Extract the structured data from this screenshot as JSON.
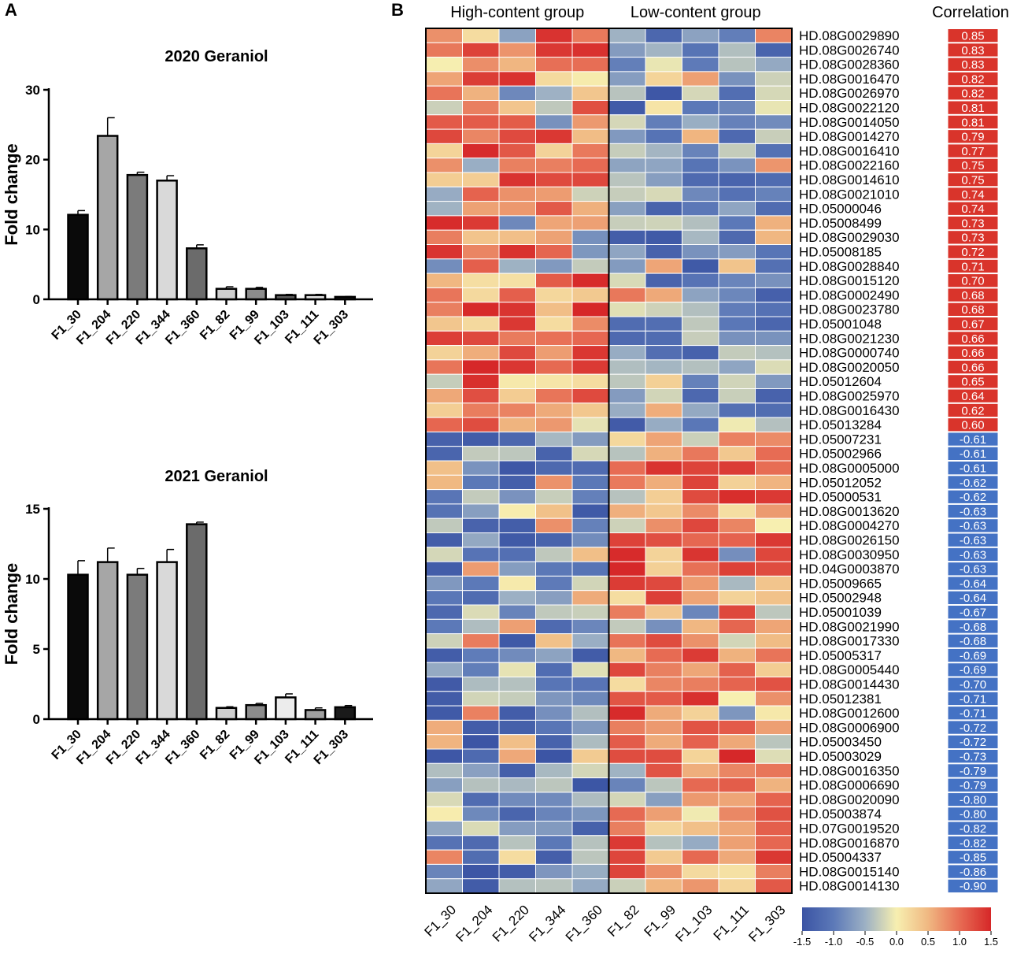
{
  "panels": {
    "a": "A",
    "b": "B"
  },
  "chart_data": [
    {
      "type": "bar",
      "title": "2020 Geraniol",
      "xlabel": "",
      "ylabel": "Fold change",
      "categories": [
        "F1_30",
        "F1_204",
        "F1_220",
        "F1_344",
        "F1_360",
        "F1_82",
        "F1_99",
        "F1_103",
        "F1_111",
        "F1_303"
      ],
      "values": [
        12.1,
        23.4,
        17.8,
        17.0,
        7.3,
        1.5,
        1.5,
        0.6,
        0.6,
        0.35
      ],
      "errors": [
        0.6,
        2.6,
        0.4,
        0.7,
        0.5,
        0.3,
        0.2,
        0.1,
        0.1,
        0.05
      ],
      "fills": [
        "#0a0a0a",
        "#a6a6a6",
        "#7b7b7b",
        "#d9d9d9",
        "#6b6b6b",
        "#cfcfcf",
        "#8c8c8c",
        "#5a5a5a",
        "#e0e0e0",
        "#1a1a1a"
      ],
      "ylim": [
        0,
        30
      ],
      "yticks": [
        0,
        10,
        20,
        30
      ]
    },
    {
      "type": "bar",
      "title": "2021 Geraniol",
      "xlabel": "",
      "ylabel": "Fold change",
      "categories": [
        "F1_30",
        "F1_204",
        "F1_220",
        "F1_344",
        "F1_360",
        "F1_82",
        "F1_99",
        "F1_103",
        "F1_111",
        "F1_303"
      ],
      "values": [
        10.3,
        11.2,
        10.3,
        11.2,
        13.9,
        0.8,
        1.0,
        1.55,
        0.65,
        0.85
      ],
      "errors": [
        1.0,
        1.0,
        0.45,
        0.9,
        0.15,
        0.08,
        0.12,
        0.25,
        0.15,
        0.12
      ],
      "fills": [
        "#0a0a0a",
        "#a6a6a6",
        "#7b7b7b",
        "#d9d9d9",
        "#6b6b6b",
        "#cfcfcf",
        "#8c8c8c",
        "#ececec",
        "#a0a0a0",
        "#1a1a1a"
      ],
      "ylim": [
        0,
        15
      ],
      "yticks": [
        0,
        5,
        10,
        15
      ]
    },
    {
      "type": "heatmap",
      "group_labels": [
        "High-content group",
        "Low-content group"
      ],
      "columns": [
        "F1_30",
        "F1_204",
        "F1_220",
        "F1_344",
        "F1_360",
        "F1_82",
        "F1_99",
        "F1_103",
        "F1_111",
        "F1_303"
      ],
      "rows": [
        "HD.08G0029890",
        "HD.08G0026740",
        "HD.08G0028360",
        "HD.08G0016470",
        "HD.08G0026970",
        "HD.08G0022120",
        "HD.08G0014050",
        "HD.08G0014270",
        "HD.08G0016410",
        "HD.08G0022160",
        "HD.08G0014610",
        "HD.08G0021010",
        "HD.05000046",
        "HD.05008499",
        "HD.08G0029030",
        "HD.05008185",
        "HD.08G0028840",
        "HD.08G0015120",
        "HD.08G0002490",
        "HD.08G0023780",
        "HD.05001048",
        "HD.08G0021230",
        "HD.08G0000740",
        "HD.08G0020050",
        "HD.05012604",
        "HD.08G0025970",
        "HD.08G0016430",
        "HD.05013284",
        "HD.05007231",
        "HD.05002966",
        "HD.08G0005000",
        "HD.05012052",
        "HD.05000531",
        "HD.08G0013620",
        "HD.08G0004270",
        "HD.08G0026150",
        "HD.08G0030950",
        "HD.04G0003870",
        "HD.05009665",
        "HD.05002948",
        "HD.05001039",
        "HD.08G0021990",
        "HD.08G0017330",
        "HD.05005317",
        "HD.08G0005440",
        "HD.08G0014430",
        "HD.05012381",
        "HD.08G0012600",
        "HD.08G0006900",
        "HD.05003450",
        "HD.05003029",
        "HD.08G0016350",
        "HD.08G0006690",
        "HD.08G0020090",
        "HD.05003874",
        "HD.07G0019520",
        "HD.08G0016870",
        "HD.05004337",
        "HD.08G0015140",
        "HD.08G0014130"
      ],
      "correlation_title": "Correlation",
      "correlations": [
        "0.85",
        "0.83",
        "0.83",
        "0.82",
        "0.82",
        "0.81",
        "0.81",
        "0.79",
        "0.77",
        "0.75",
        "0.75",
        "0.74",
        "0.74",
        "0.73",
        "0.73",
        "0.72",
        "0.71",
        "0.70",
        "0.68",
        "0.68",
        "0.67",
        "0.66",
        "0.66",
        "0.66",
        "0.65",
        "0.64",
        "0.62",
        "0.60",
        "-0.61",
        "-0.61",
        "-0.61",
        "-0.62",
        "-0.62",
        "-0.63",
        "-0.63",
        "-0.63",
        "-0.63",
        "-0.63",
        "-0.64",
        "-0.64",
        "-0.67",
        "-0.68",
        "-0.68",
        "-0.69",
        "-0.69",
        "-0.70",
        "-0.71",
        "-0.71",
        "-0.72",
        "-0.72",
        "-0.73",
        "-0.79",
        "-0.79",
        "-0.80",
        "-0.80",
        "-0.82",
        "-0.82",
        "-0.85",
        "-0.86",
        "-0.90"
      ],
      "colorbar": {
        "min": -1.5,
        "max": 1.5,
        "ticks": [
          "-1.5",
          "-1.0",
          "-0.5",
          "0.0",
          "0.5",
          "1.0",
          "1.5"
        ]
      },
      "colors": {
        "low": "#3b54a4",
        "mid": "#f7efb0",
        "high": "#d62728",
        "positive_corr": "#d9342b",
        "negative_corr": "#4472c4"
      }
    }
  ]
}
